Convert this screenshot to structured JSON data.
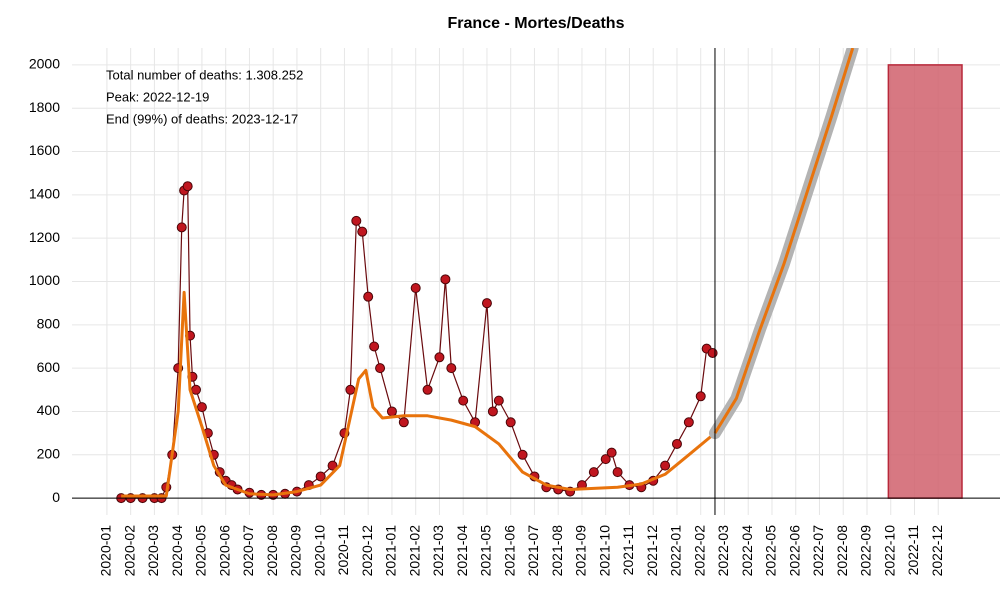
{
  "chart_data": {
    "type": "line",
    "title": "France - Mortes/Deaths",
    "annotations": [
      {
        "text": "Total number of deaths: 1.308.252",
        "color": "#000000"
      },
      {
        "text": "Peak: 2022-12-19",
        "color": "#c0101e"
      },
      {
        "text": "End (99%) of deaths: 2023-12-17",
        "color": "#5fa35f"
      }
    ],
    "xlim": [
      -1.47,
      37.6
    ],
    "ylim": [
      -78,
      2078
    ],
    "xticks": [
      {
        "value": 0,
        "label": "2020-01"
      },
      {
        "value": 1,
        "label": "2020-02"
      },
      {
        "value": 2,
        "label": "2020-03"
      },
      {
        "value": 3,
        "label": "2020-04"
      },
      {
        "value": 4,
        "label": "2020-05"
      },
      {
        "value": 5,
        "label": "2020-06"
      },
      {
        "value": 6,
        "label": "2020-07"
      },
      {
        "value": 7,
        "label": "2020-08"
      },
      {
        "value": 8,
        "label": "2020-09"
      },
      {
        "value": 9,
        "label": "2020-10"
      },
      {
        "value": 10,
        "label": "2020-11"
      },
      {
        "value": 11,
        "label": "2020-12"
      },
      {
        "value": 12,
        "label": "2021-01"
      },
      {
        "value": 13,
        "label": "2021-02"
      },
      {
        "value": 14,
        "label": "2021-03"
      },
      {
        "value": 15,
        "label": "2021-04"
      },
      {
        "value": 16,
        "label": "2021-05"
      },
      {
        "value": 17,
        "label": "2021-06"
      },
      {
        "value": 18,
        "label": "2021-07"
      },
      {
        "value": 19,
        "label": "2021-08"
      },
      {
        "value": 20,
        "label": "2021-09"
      },
      {
        "value": 21,
        "label": "2021-10"
      },
      {
        "value": 22,
        "label": "2021-11"
      },
      {
        "value": 23,
        "label": "2021-12"
      },
      {
        "value": 24,
        "label": "2022-01"
      },
      {
        "value": 25,
        "label": "2022-02"
      },
      {
        "value": 26,
        "label": "2022-03"
      },
      {
        "value": 27,
        "label": "2022-04"
      },
      {
        "value": 28,
        "label": "2022-05"
      },
      {
        "value": 29,
        "label": "2022-06"
      },
      {
        "value": 30,
        "label": "2022-07"
      },
      {
        "value": 31,
        "label": "2022-08"
      },
      {
        "value": 32,
        "label": "2022-09"
      },
      {
        "value": 33,
        "label": "2022-10"
      },
      {
        "value": 34,
        "label": "2022-11"
      },
      {
        "value": 35,
        "label": "2022-12"
      }
    ],
    "yticks": [
      0,
      200,
      400,
      600,
      800,
      1000,
      1200,
      1400,
      1600,
      1800,
      2000
    ],
    "grid": true,
    "hline": 0,
    "vline": 25.6,
    "span": {
      "xrange": [
        32.9,
        36.0
      ],
      "yrange": [
        0,
        2000
      ],
      "color": "#d0606c"
    },
    "series": [
      {
        "color": "#c0161f",
        "markers": true,
        "x": [
          0.6,
          1.0,
          1.5,
          2.0,
          2.3,
          2.5,
          2.75,
          3.0,
          3.15,
          3.25,
          3.4,
          3.5,
          3.6,
          3.75,
          4.0,
          4.25,
          4.5,
          4.75,
          5.0,
          5.25,
          5.5,
          6.0,
          6.5,
          7.0,
          7.5,
          8.0,
          8.5,
          9.0,
          9.5,
          10.0,
          10.25,
          10.5,
          10.75,
          11.0,
          11.25,
          11.5,
          12.0,
          12.5,
          13.0,
          13.5,
          14.0,
          14.25,
          14.5,
          15.0,
          15.5,
          16.0,
          16.25,
          16.5,
          17.0,
          17.5,
          18.0,
          18.5,
          19.0,
          19.5,
          20.0,
          20.5,
          21.0,
          21.25,
          21.5,
          22.0,
          22.5,
          23.0,
          23.5,
          24.0,
          24.5,
          25.0,
          25.25,
          25.5
        ],
        "values": [
          0,
          0,
          0,
          0,
          0,
          50,
          200,
          600,
          1250,
          1420,
          1440,
          750,
          560,
          500,
          420,
          300,
          200,
          120,
          80,
          60,
          40,
          25,
          15,
          15,
          20,
          30,
          60,
          100,
          150,
          300,
          500,
          1280,
          1230,
          930,
          700,
          600,
          400,
          350,
          970,
          500,
          650,
          1010,
          600,
          450,
          350,
          900,
          400,
          450,
          350,
          200,
          100,
          50,
          40,
          30,
          60,
          120,
          180,
          210,
          120,
          60,
          50,
          80,
          150,
          250,
          350,
          470,
          690,
          670
        ]
      },
      {
        "color": "#e8730c",
        "x": [
          0.6,
          2.5,
          3.0,
          3.25,
          3.5,
          4.0,
          4.5,
          5.0,
          6.0,
          7.0,
          8.0,
          9.0,
          9.8,
          10.2,
          10.6,
          10.9,
          11.2,
          11.6,
          12.5,
          13.5,
          14.5,
          15.5,
          16.5,
          17.5,
          18.5,
          19.5,
          20.5,
          21.5,
          22.5,
          23.5,
          24.5,
          25.6
        ],
        "values": [
          10,
          10,
          400,
          950,
          500,
          330,
          150,
          60,
          20,
          15,
          30,
          60,
          150,
          350,
          550,
          590,
          420,
          370,
          380,
          380,
          360,
          330,
          250,
          120,
          60,
          40,
          45,
          50,
          65,
          110,
          200,
          300
        ]
      },
      {
        "color": "#e8730c",
        "band_color": "#b3b3b3",
        "x": [
          25.6,
          26.5,
          27.5,
          28.5,
          29.5,
          30.5,
          31.4
        ],
        "values": [
          300,
          460,
          780,
          1080,
          1420,
          1760,
          2078
        ]
      }
    ]
  }
}
